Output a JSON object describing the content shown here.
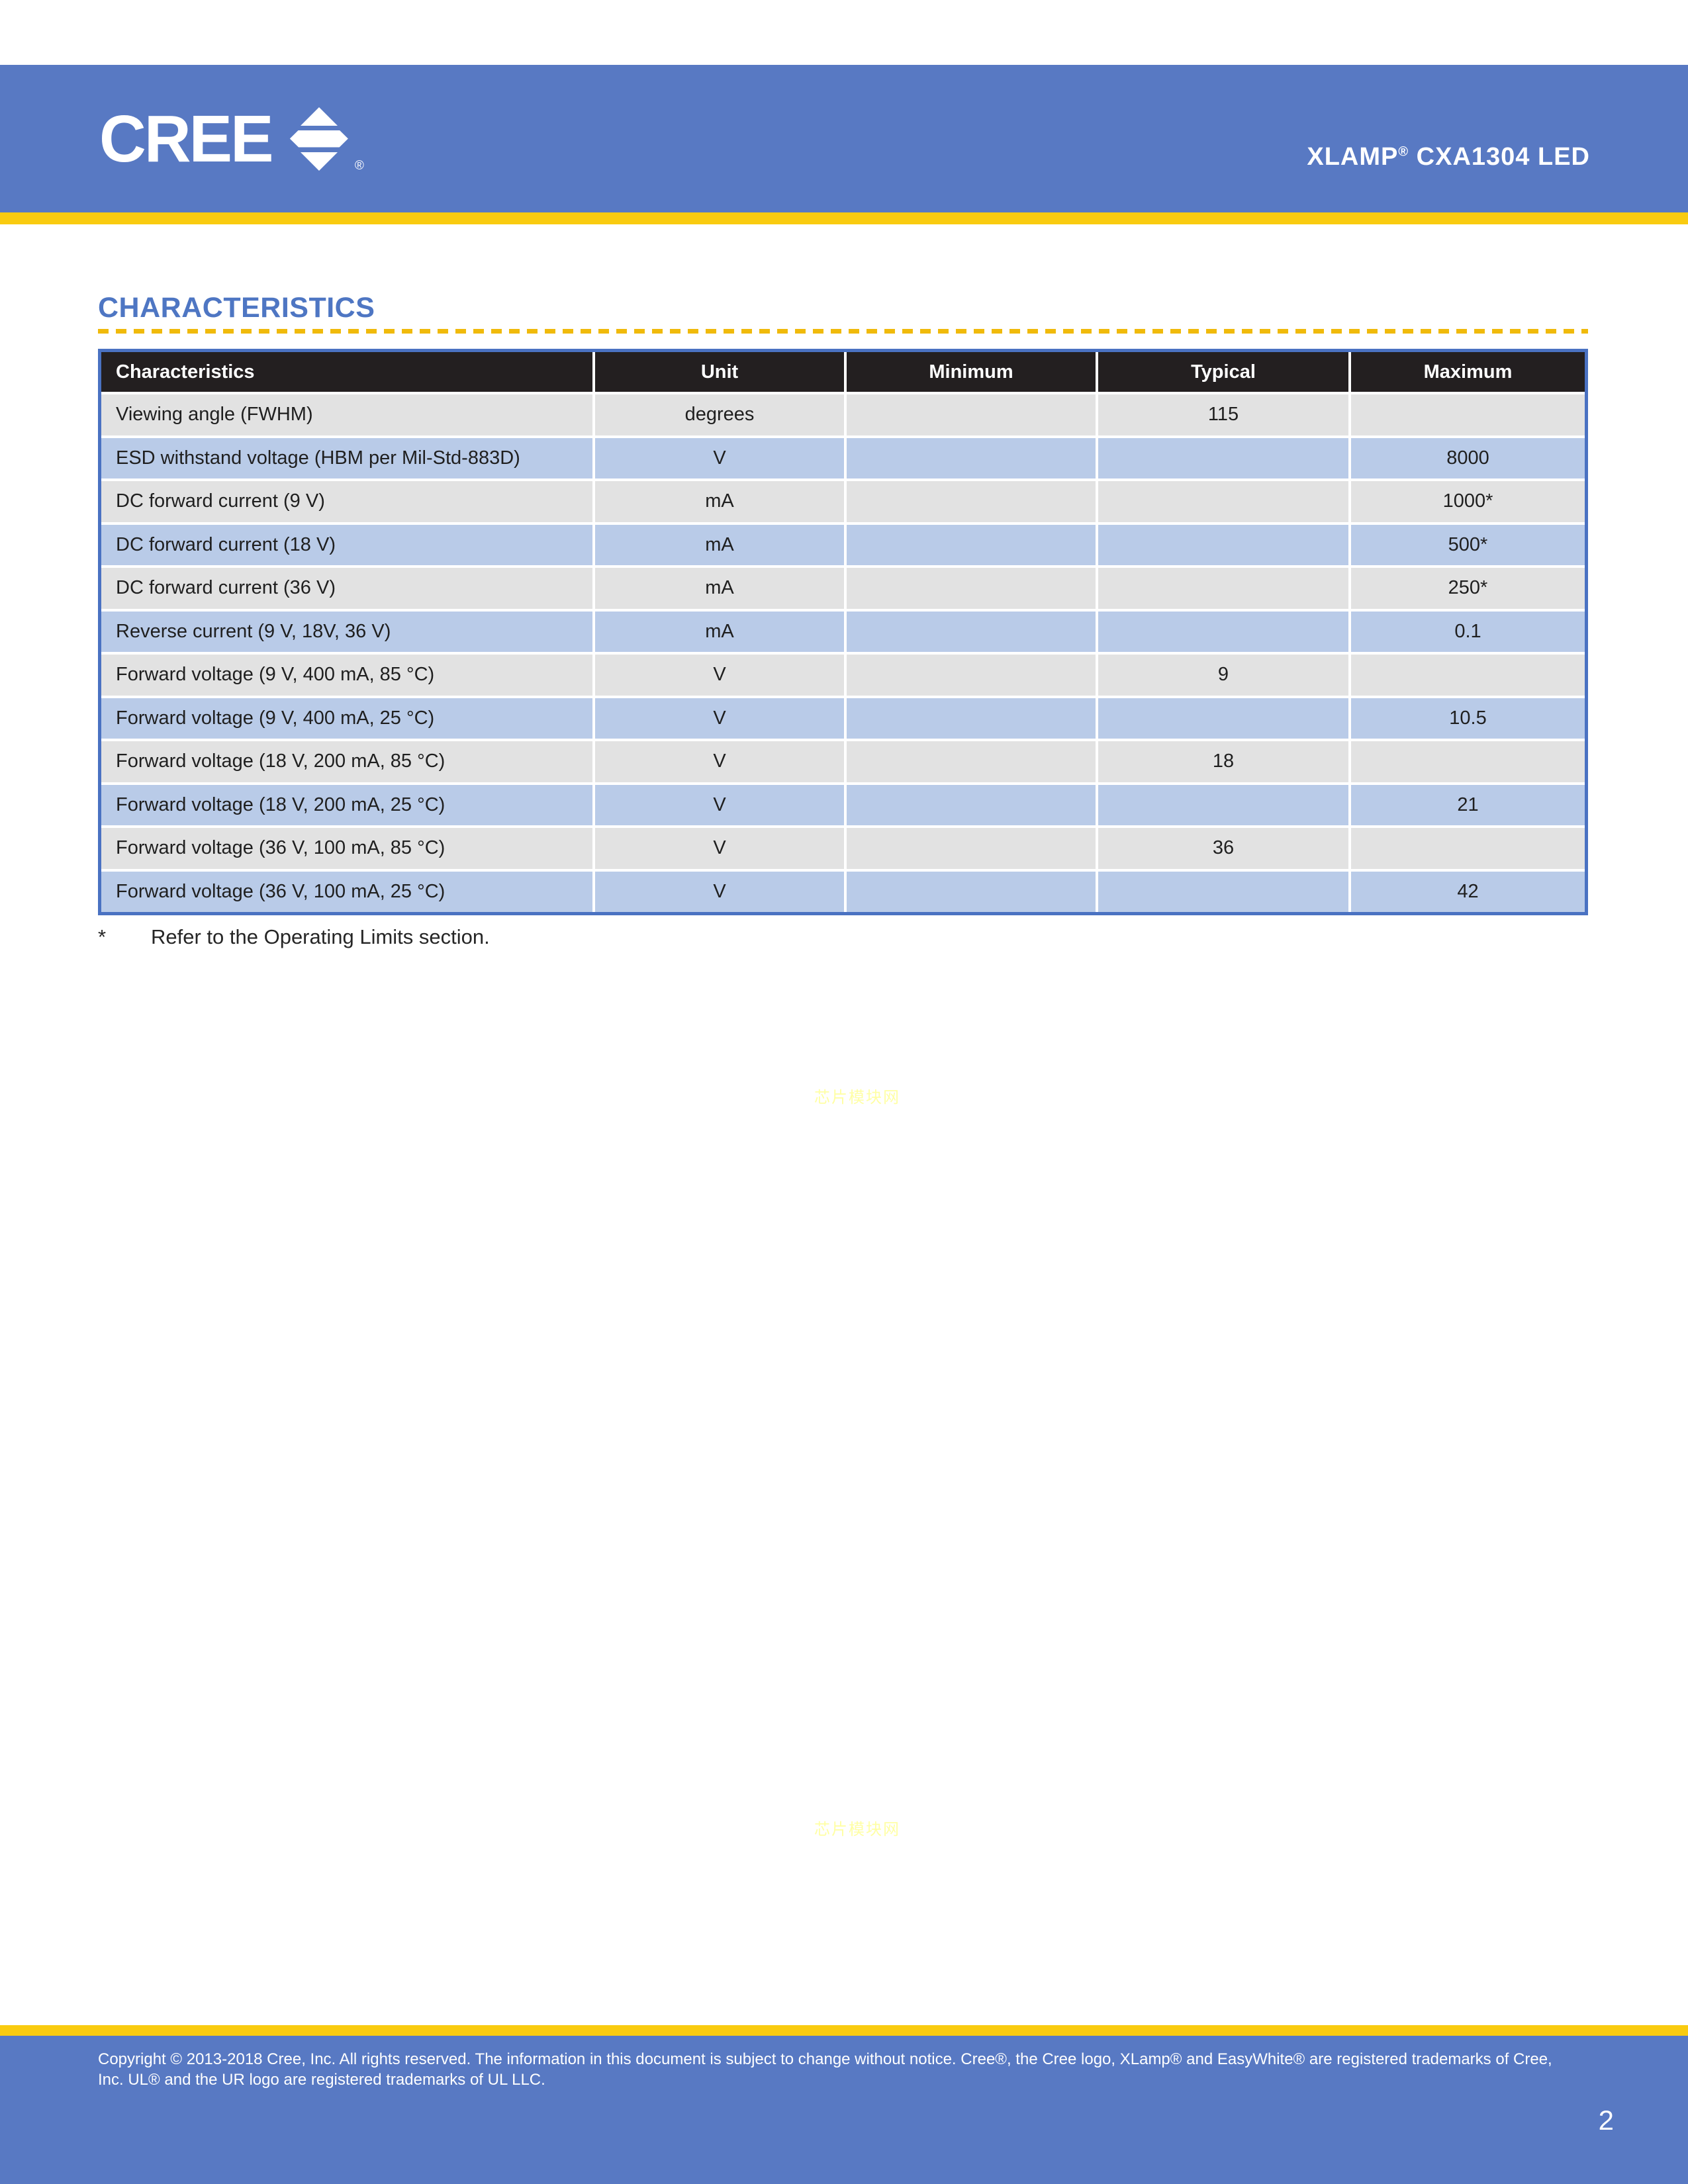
{
  "header": {
    "logo_text": "CREE",
    "logo_reg": "®",
    "title_brand": "XLAMP",
    "title_reg": "®",
    "title_rest": " CXA1304 LED"
  },
  "section": {
    "heading": "CHARACTERISTICS"
  },
  "table": {
    "columns": [
      "Characteristics",
      "Unit",
      "Minimum",
      "Typical",
      "Maximum"
    ],
    "rows": [
      {
        "characteristics": "Viewing angle (FWHM)",
        "unit": "degrees",
        "minimum": "",
        "typical": "115",
        "maximum": ""
      },
      {
        "characteristics": "ESD withstand voltage (HBM per Mil-Std-883D)",
        "unit": "V",
        "minimum": "",
        "typical": "",
        "maximum": "8000"
      },
      {
        "characteristics": "DC forward current (9 V)",
        "unit": "mA",
        "minimum": "",
        "typical": "",
        "maximum": "1000*"
      },
      {
        "characteristics": "DC forward current (18 V)",
        "unit": "mA",
        "minimum": "",
        "typical": "",
        "maximum": "500*"
      },
      {
        "characteristics": "DC forward current (36 V)",
        "unit": "mA",
        "minimum": "",
        "typical": "",
        "maximum": "250*"
      },
      {
        "characteristics": "Reverse current (9 V, 18V, 36 V)",
        "unit": "mA",
        "minimum": "",
        "typical": "",
        "maximum": "0.1"
      },
      {
        "characteristics": "Forward voltage (9 V, 400 mA, 85 °C)",
        "unit": "V",
        "minimum": "",
        "typical": "9",
        "maximum": ""
      },
      {
        "characteristics": "Forward voltage (9 V, 400 mA, 25 °C)",
        "unit": "V",
        "minimum": "",
        "typical": "",
        "maximum": "10.5"
      },
      {
        "characteristics": "Forward voltage (18 V, 200 mA, 85 °C)",
        "unit": "V",
        "minimum": "",
        "typical": "18",
        "maximum": ""
      },
      {
        "characteristics": "Forward voltage (18 V, 200 mA, 25 °C)",
        "unit": "V",
        "minimum": "",
        "typical": "",
        "maximum": "21"
      },
      {
        "characteristics": "Forward voltage (36 V, 100 mA, 85 °C)",
        "unit": "V",
        "minimum": "",
        "typical": "36",
        "maximum": ""
      },
      {
        "characteristics": "Forward voltage (36 V, 100 mA, 25 °C)",
        "unit": "V",
        "minimum": "",
        "typical": "",
        "maximum": "42"
      }
    ]
  },
  "footnote": {
    "marker": "*",
    "text": "Refer to the Operating Limits section."
  },
  "watermark": {
    "text": "芯片模块网"
  },
  "footer": {
    "lines": [
      "Copyright © 2013-2018 Cree, Inc. All rights reserved. The information in this document is subject to change without notice. Cree®, the Cree logo, XLamp® and EasyWhite® are registered trademarks of Cree,",
      "Inc. UL® and the UR logo are registered trademarks of UL LLC."
    ],
    "page_number": "2"
  },
  "colors": {
    "brand_blue": "#5879c3",
    "accent_yellow": "#f9cb10",
    "heading_blue": "#4e76c3",
    "table_border_blue": "#4a72c2",
    "table_header_black": "#231f20",
    "row_gray": "#e2e2e2",
    "row_blue": "#b9cbe8",
    "watermark_yellow": "#ffff9c"
  }
}
